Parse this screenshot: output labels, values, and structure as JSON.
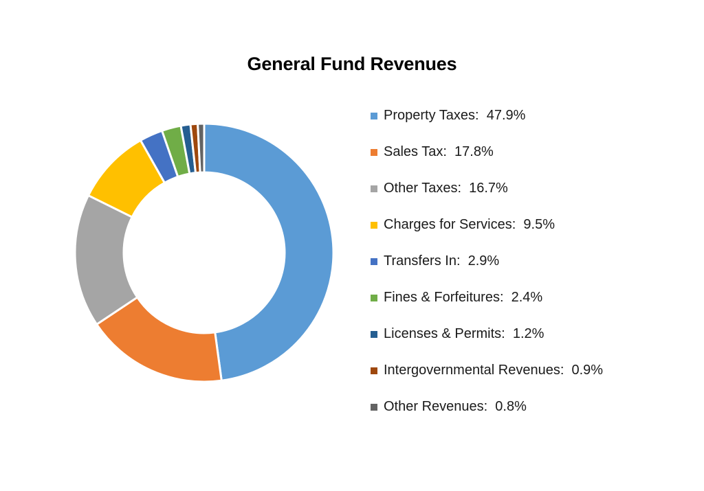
{
  "chart_data": {
    "type": "pie",
    "title": "General Fund Revenues",
    "donut": true,
    "legend_position": "right",
    "categories": [
      "Property Taxes",
      "Sales Tax",
      "Other Taxes",
      "Charges for Services",
      "Transfers In",
      "Fines & Forfeitures",
      "Licenses & Permits",
      "Intergovernmental Revenues",
      "Other Revenues"
    ],
    "values": [
      47.9,
      17.8,
      16.7,
      9.5,
      2.9,
      2.4,
      1.2,
      0.9,
      0.8
    ],
    "legend_labels": [
      "Property Taxes:  47.9%",
      "Sales Tax:  17.8%",
      "Other Taxes:  16.7%",
      "Charges for Services:  9.5%",
      "Transfers In:  2.9%",
      "Fines & Forfeitures:  2.4%",
      "Licenses & Permits:  1.2%",
      "Intergovernmental Revenues:  0.9%",
      "Other Revenues:  0.8%"
    ],
    "colors": [
      "#5b9bd5",
      "#ed7d31",
      "#a5a5a5",
      "#ffc000",
      "#4472c4",
      "#70ad47",
      "#255e91",
      "#9e480e",
      "#636363"
    ]
  }
}
